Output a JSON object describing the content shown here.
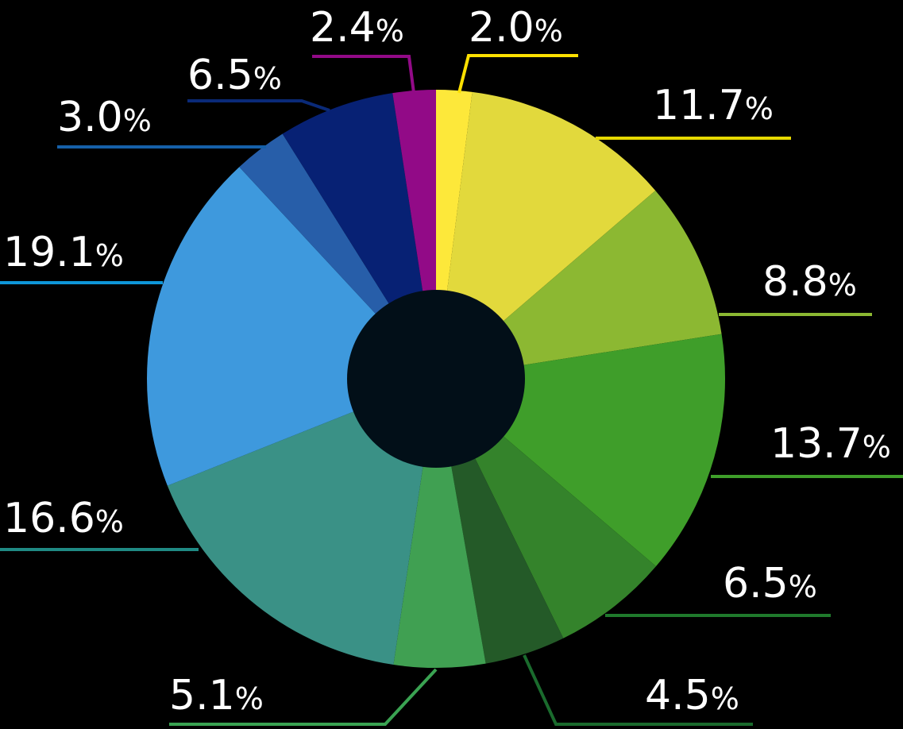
{
  "chart_data": {
    "type": "pie",
    "donut": true,
    "title": "",
    "background": "#000000",
    "hole_color": "#020f18",
    "slices": [
      {
        "label": "2.0%",
        "value": 2.0,
        "color": "#fde83a",
        "leader": "#fde000"
      },
      {
        "label": "11.7%",
        "value": 11.7,
        "color": "#e2d93c",
        "leader": "#e6d800"
      },
      {
        "label": "8.8%",
        "value": 8.8,
        "color": "#8cb832",
        "leader": "#8cb832"
      },
      {
        "label": "13.7%",
        "value": 13.7,
        "color": "#3f9e2a",
        "leader": "#3f9e2a"
      },
      {
        "label": "6.5%",
        "value": 6.5,
        "color": "#34832b",
        "leader": "#1f7a2c"
      },
      {
        "label": "4.5%",
        "value": 4.5,
        "color": "#245a28",
        "leader": "#1a6b2d"
      },
      {
        "label": "5.1%",
        "value": 5.1,
        "color": "#40a052",
        "leader": "#3aa352"
      },
      {
        "label": "16.6%",
        "value": 16.6,
        "color": "#3a9186",
        "leader": "#1f8a84"
      },
      {
        "label": "19.1%",
        "value": 19.1,
        "color": "#3e99dd",
        "leader": "#0e96d8"
      },
      {
        "label": "3.0%",
        "value": 3.0,
        "color": "#275ea9",
        "leader": "#1660a8"
      },
      {
        "label": "6.5%",
        "value": 6.5,
        "color": "#072174",
        "leader": "#0a2a78"
      },
      {
        "label": "2.4%",
        "value": 2.4,
        "color": "#920a87",
        "leader": "#920a87"
      }
    ],
    "legend": "none",
    "start_angle_deg": 0,
    "direction": "clockwise"
  }
}
